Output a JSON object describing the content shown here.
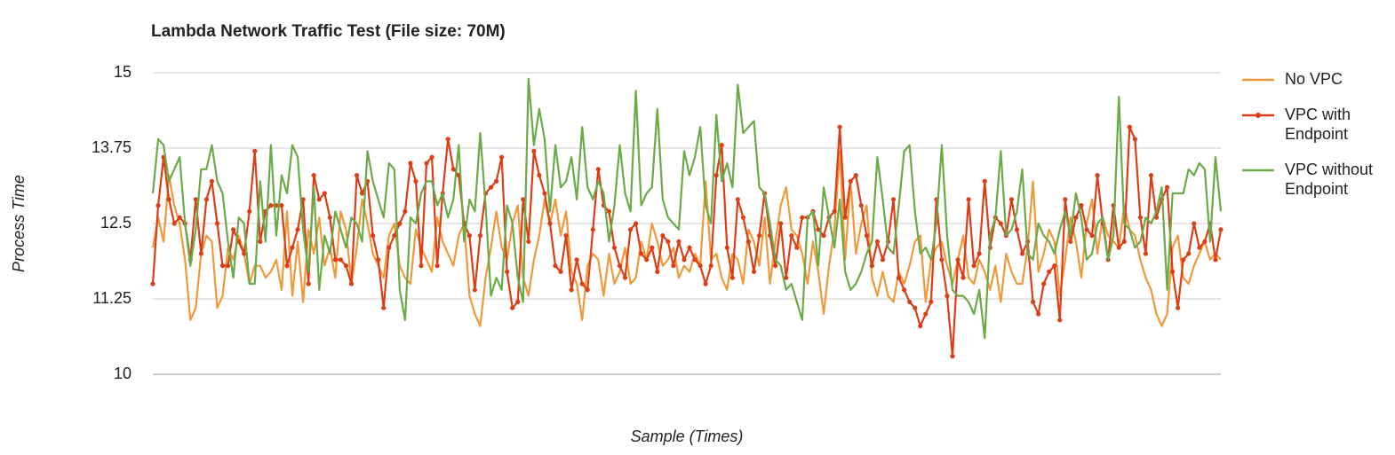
{
  "chart_data": {
    "type": "line",
    "title": "Lambda Network Traffic Test (File size: 70M)",
    "y_label": "Process Time",
    "x_label": "Sample (Times)",
    "ylim": [
      10,
      15
    ],
    "yticks": [
      15,
      13.75,
      12.5,
      11.25,
      10
    ],
    "grid": true,
    "legend": "right",
    "series": [
      {
        "name": "No VPC",
        "color": "#f0993b",
        "markers": false,
        "values": [
          12.1,
          12.6,
          12.2,
          13.3,
          12.8,
          12.5,
          11.9,
          10.9,
          11.1,
          12.0,
          12.3,
          12.2,
          11.1,
          11.3,
          12.1,
          11.9,
          12.3,
          12.0,
          11.5,
          11.8,
          11.8,
          11.6,
          11.7,
          11.9,
          11.4,
          12.7,
          11.3,
          12.2,
          11.2,
          12.4,
          12.0,
          12.6,
          11.8,
          12.1,
          11.6,
          12.7,
          12.4,
          11.5,
          12.1,
          12.9,
          12.5,
          12.0,
          11.8,
          11.6,
          12.3,
          12.5,
          11.8,
          11.6,
          11.5,
          12.4,
          12.1,
          11.9,
          11.7,
          12.6,
          12.2,
          12.0,
          11.8,
          12.3,
          12.5,
          11.3,
          11.0,
          10.8,
          11.6,
          12.1,
          12.7,
          12.1,
          11.9,
          12.5,
          12.8,
          11.6,
          11.3,
          11.9,
          12.3,
          12.9,
          12.5,
          12.9,
          12.3,
          12.7,
          11.7,
          11.5,
          10.9,
          11.8,
          12.0,
          11.9,
          11.3,
          12.0,
          11.5,
          11.7,
          12.1,
          11.5,
          11.6,
          12.2,
          11.9,
          12.5,
          12.2,
          11.8,
          11.9,
          12.1,
          11.6,
          11.8,
          11.7,
          12.0,
          11.8,
          13.2,
          11.9,
          12.0,
          11.6,
          11.4,
          12.0,
          11.9,
          11.5,
          12.4,
          12.2,
          11.8,
          12.6,
          11.5,
          12.2,
          12.8,
          13.1,
          12.4,
          12.3,
          12.0,
          11.5,
          12.2,
          11.7,
          11.0,
          11.8,
          12.4,
          13.7,
          11.9,
          13.2,
          12.0,
          12.5,
          12.8,
          11.6,
          11.3,
          11.7,
          11.3,
          11.2,
          11.7,
          11.5,
          11.8,
          12.2,
          12.3,
          11.2,
          11.9,
          12.1,
          12.2,
          11.8,
          11.5,
          11.9,
          12.3,
          11.6,
          11.5,
          11.9,
          11.7,
          11.4,
          11.8,
          11.2,
          12.0,
          11.7,
          11.5,
          11.5,
          12.1,
          13.2,
          11.7,
          12.0,
          12.4,
          12.2,
          11.3,
          11.9,
          12.6,
          12.2,
          11.6,
          12.5,
          12.9,
          12.0,
          12.6,
          12.3,
          12.2,
          12.1,
          12.8,
          12.4,
          12.3,
          11.9,
          11.6,
          11.4,
          11.0,
          10.8,
          11.0,
          12.1,
          12.3,
          11.6,
          11.5,
          11.8,
          12.0,
          12.2,
          11.9,
          12.0,
          11.9
        ]
      },
      {
        "name": "VPC with Endpoint",
        "color": "#dc3f17",
        "markers": true,
        "values": [
          11.5,
          12.8,
          13.6,
          12.9,
          12.5,
          12.6,
          12.5,
          11.9,
          12.9,
          12.0,
          12.9,
          13.2,
          12.5,
          11.8,
          11.8,
          12.4,
          12.2,
          12.0,
          12.7,
          13.7,
          12.2,
          12.7,
          12.8,
          12.8,
          12.8,
          11.8,
          12.1,
          12.4,
          12.9,
          11.5,
          13.3,
          12.9,
          13.0,
          12.6,
          11.9,
          11.9,
          11.8,
          11.5,
          13.3,
          13.0,
          13.2,
          12.3,
          11.9,
          11.1,
          12.1,
          12.3,
          12.5,
          12.7,
          13.5,
          13.2,
          11.8,
          13.5,
          13.6,
          11.8,
          13.0,
          13.9,
          13.4,
          13.3,
          12.5,
          12.3,
          11.4,
          12.3,
          13.0,
          13.1,
          13.2,
          13.6,
          11.7,
          11.1,
          11.2,
          12.9,
          12.2,
          13.7,
          13.3,
          13.0,
          12.5,
          11.8,
          11.7,
          12.3,
          11.4,
          11.9,
          11.5,
          11.4,
          12.4,
          13.4,
          12.8,
          12.7,
          12.1,
          11.8,
          11.6,
          12.4,
          12.5,
          12.0,
          11.9,
          12.1,
          11.7,
          12.3,
          12.2,
          11.8,
          12.2,
          11.9,
          12.1,
          11.9,
          11.8,
          11.5,
          11.8,
          13.3,
          13.8,
          12.1,
          11.6,
          12.9,
          12.6,
          12.2,
          11.7,
          12.3,
          13.0,
          12.3,
          11.8,
          12.5,
          11.6,
          12.3,
          12.1,
          12.6,
          12.6,
          12.7,
          12.4,
          12.3,
          12.6,
          12.7,
          14.1,
          12.6,
          13.2,
          13.3,
          12.8,
          12.3,
          11.8,
          12.2,
          11.9,
          12.2,
          12.9,
          11.6,
          11.4,
          11.2,
          11.1,
          10.8,
          11.0,
          11.2,
          12.9,
          11.9,
          11.3,
          10.3,
          11.9,
          11.6,
          12.9,
          11.8,
          12.0,
          13.2,
          12.1,
          12.6,
          12.5,
          12.3,
          12.9,
          12.4,
          12.0,
          12.2,
          11.2,
          11.0,
          11.5,
          11.7,
          11.8,
          10.9,
          12.9,
          12.2,
          12.6,
          12.8,
          12.4,
          12.3,
          13.3,
          12.5,
          11.9,
          12.8,
          12.1,
          12.2,
          14.1,
          13.9,
          12.6,
          12.0,
          13.3,
          12.6,
          12.9,
          13.1,
          11.7,
          11.1,
          11.9,
          12.0,
          12.5,
          12.1,
          12.2,
          12.5,
          11.9,
          12.4
        ]
      },
      {
        "name": "VPC without Endpoint",
        "color": "#6aaa47",
        "markers": false,
        "values": [
          13.0,
          13.9,
          13.8,
          13.2,
          13.4,
          13.6,
          12.5,
          11.8,
          12.4,
          13.4,
          13.4,
          13.8,
          13.2,
          13.0,
          12.2,
          11.6,
          12.6,
          12.5,
          11.5,
          11.5,
          13.2,
          12.2,
          13.8,
          12.3,
          13.3,
          13.0,
          13.8,
          13.6,
          12.4,
          11.7,
          13.1,
          11.4,
          12.3,
          12.0,
          12.7,
          12.4,
          12.1,
          12.6,
          12.5,
          12.2,
          13.7,
          13.2,
          12.9,
          12.6,
          13.5,
          13.4,
          11.4,
          10.9,
          12.6,
          12.5,
          13.0,
          13.2,
          13.2,
          12.8,
          13.0,
          12.6,
          12.9,
          13.8,
          12.2,
          12.9,
          12.7,
          14.0,
          12.8,
          11.3,
          11.6,
          11.4,
          12.8,
          12.5,
          11.6,
          11.2,
          14.9,
          13.8,
          14.4,
          13.9,
          12.7,
          13.8,
          13.1,
          13.2,
          13.6,
          12.9,
          14.1,
          13.1,
          12.9,
          13.2,
          13.0,
          12.2,
          12.8,
          13.8,
          13.0,
          12.7,
          14.7,
          12.8,
          13.0,
          13.1,
          14.4,
          12.9,
          12.6,
          12.5,
          12.4,
          13.7,
          13.3,
          13.6,
          14.1,
          12.8,
          12.5,
          14.3,
          13.2,
          13.5,
          13.1,
          14.8,
          14.0,
          14.1,
          14.2,
          13.1,
          13.0,
          12.5,
          11.9,
          11.8,
          11.4,
          11.5,
          11.2,
          10.9,
          12.6,
          12.7,
          11.8,
          13.1,
          12.6,
          12.1,
          12.9,
          11.7,
          11.4,
          11.5,
          11.7,
          12.0,
          12.2,
          13.6,
          12.9,
          12.1,
          12.0,
          12.8,
          13.7,
          13.8,
          12.7,
          12.0,
          12.1,
          11.9,
          12.5,
          13.8,
          12.3,
          11.4,
          11.3,
          11.3,
          11.2,
          11.0,
          11.4,
          10.6,
          12.3,
          12.6,
          13.7,
          12.3,
          12.4,
          12.7,
          13.4,
          12.0,
          11.9,
          12.5,
          12.3,
          12.2,
          12.0,
          12.4,
          12.7,
          12.3,
          13.0,
          12.6,
          11.9,
          12.0,
          12.5,
          12.6,
          11.9,
          12.3,
          14.6,
          12.5,
          12.4,
          12.1,
          12.2,
          12.6,
          12.5,
          12.7,
          13.1,
          11.4,
          13.0,
          13.0,
          13.0,
          13.4,
          13.3,
          13.5,
          13.4,
          12.2,
          13.6,
          12.7
        ]
      }
    ]
  }
}
